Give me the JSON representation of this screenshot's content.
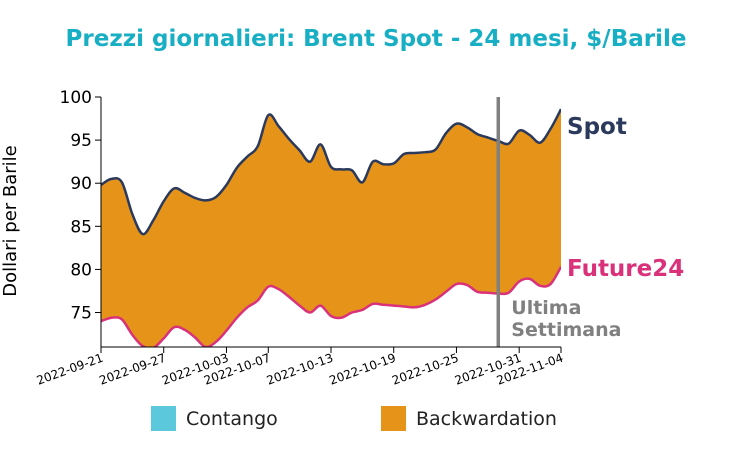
{
  "chart_data": {
    "type": "area",
    "title": "Prezzi giornalieri: Brent Spot - 24 mesi, $/Barile",
    "ylabel": "Dollari per Barile",
    "xlabel": "",
    "ylim": [
      71,
      100
    ],
    "yticks": [
      75,
      80,
      85,
      90,
      95,
      100
    ],
    "xlim": [
      "2022-09-21",
      "2022-11-04"
    ],
    "xticks": [
      "2022-09-21",
      "2022-09-27",
      "2022-10-03",
      "2022-10-07",
      "2022-10-13",
      "2022-10-19",
      "2022-10-25",
      "2022-10-31",
      "2022-11-04"
    ],
    "x": [
      "2022-09-21",
      "2022-09-22",
      "2022-09-23",
      "2022-09-24",
      "2022-09-25",
      "2022-09-26",
      "2022-09-27",
      "2022-09-28",
      "2022-09-29",
      "2022-09-30",
      "2022-10-01",
      "2022-10-02",
      "2022-10-03",
      "2022-10-04",
      "2022-10-05",
      "2022-10-06",
      "2022-10-07",
      "2022-10-08",
      "2022-10-09",
      "2022-10-10",
      "2022-10-11",
      "2022-10-12",
      "2022-10-13",
      "2022-10-14",
      "2022-10-15",
      "2022-10-16",
      "2022-10-17",
      "2022-10-18",
      "2022-10-19",
      "2022-10-20",
      "2022-10-21",
      "2022-10-22",
      "2022-10-23",
      "2022-10-24",
      "2022-10-25",
      "2022-10-26",
      "2022-10-27",
      "2022-10-28",
      "2022-10-29",
      "2022-10-30",
      "2022-10-31",
      "2022-11-01",
      "2022-11-02",
      "2022-11-03",
      "2022-11-04"
    ],
    "series": [
      {
        "name": "Spot",
        "color": "#2b3a5c",
        "values": [
          89.8,
          90.5,
          90.1,
          86.4,
          84.1,
          85.7,
          87.9,
          89.4,
          88.9,
          88.3,
          88.0,
          88.4,
          89.8,
          91.8,
          93.1,
          94.3,
          97.9,
          96.6,
          95.1,
          93.8,
          92.5,
          94.5,
          91.9,
          91.6,
          91.5,
          90.1,
          92.5,
          92.2,
          92.3,
          93.4,
          93.5,
          93.6,
          93.9,
          95.8,
          96.9,
          96.5,
          95.7,
          95.3,
          94.9,
          94.6,
          96.1,
          95.6,
          94.7,
          96.3,
          98.6
        ]
      },
      {
        "name": "Future24",
        "color": "#d9317a",
        "values": [
          74.0,
          74.4,
          74.2,
          72.4,
          71.1,
          70.9,
          72.0,
          73.3,
          73.0,
          72.1,
          71.0,
          71.6,
          72.9,
          74.4,
          75.6,
          76.4,
          78.0,
          77.7,
          76.8,
          75.8,
          75.0,
          75.8,
          74.6,
          74.4,
          75.0,
          75.3,
          76.0,
          75.9,
          75.8,
          75.7,
          75.6,
          75.9,
          76.5,
          77.4,
          78.3,
          78.2,
          77.4,
          77.3,
          77.2,
          77.3,
          78.6,
          78.9,
          78.1,
          78.3,
          80.3
        ]
      }
    ],
    "fills": [
      {
        "name": "Contango",
        "color": "#5bc8dc"
      },
      {
        "name": "Backwardation",
        "color": "#e59419"
      }
    ],
    "annotation": {
      "lines": [
        "Ultima",
        "Settimana"
      ],
      "x": "2022-10-29",
      "color": "#808080"
    },
    "title_color": "#18aec4",
    "grid": false,
    "legend_position": "bottom"
  }
}
